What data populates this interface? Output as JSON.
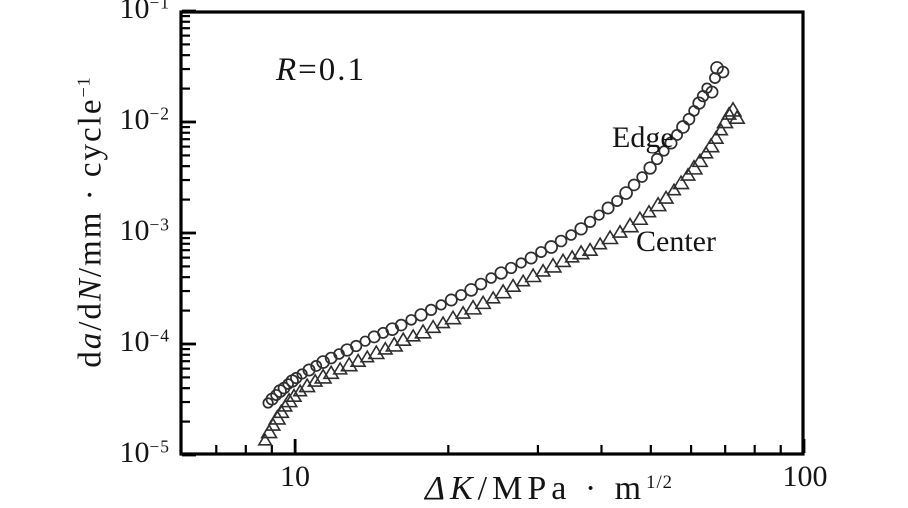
{
  "figure": {
    "background_color": "#ffffff",
    "frame_color": "#000000",
    "text_color": "#141414"
  },
  "chart_data": {
    "type": "scatter",
    "title": "",
    "xlabel": "ΔK/MPa · m^(1/2)",
    "ylabel": "da/dN/mm · cycle^(−1)",
    "xscale": "log",
    "yscale": "log",
    "xlim": [
      5.94,
      100
    ],
    "ylim": [
      1e-05,
      0.1
    ],
    "grid": false,
    "legend_position": "inline-annotations",
    "marker_color": "#2e2e2e",
    "x_axis": {
      "title_text": "ΔK/MPa · m^(1/2)",
      "title_parts": [
        {
          "t": "Δ",
          "style": "italic"
        },
        {
          "t": "K",
          "style": "italic"
        },
        {
          "t": "/MPa · m"
        },
        {
          "t": "1/2",
          "style": "sup"
        }
      ],
      "major_ticks": [
        {
          "value": 10,
          "label": "10"
        },
        {
          "value": 100,
          "label": "100"
        }
      ],
      "minor_ticks": [
        7,
        8,
        9,
        20,
        30,
        40,
        50,
        60,
        70,
        80,
        90
      ]
    },
    "y_axis": {
      "title_text": "da/dN/mm · cycle^(−1)",
      "title_parts": [
        {
          "t": "d"
        },
        {
          "t": "a",
          "style": "italic"
        },
        {
          "t": "/d"
        },
        {
          "t": "N",
          "style": "italic"
        },
        {
          "t": "/mm · cycle"
        },
        {
          "t": "−1",
          "style": "sup"
        }
      ],
      "major_ticks": [
        {
          "value": 0.1,
          "base": "10",
          "exp": "−1"
        },
        {
          "value": 0.01,
          "base": "10",
          "exp": "−2"
        },
        {
          "value": 0.001,
          "base": "10",
          "exp": "−3"
        },
        {
          "value": 0.0001,
          "base": "10",
          "exp": "−4"
        },
        {
          "value": 1e-05,
          "base": "10",
          "exp": "−5"
        }
      ],
      "minor_ticks": {
        "decades": [
          -5,
          -4,
          -3,
          -2
        ],
        "multipliers": [
          2,
          3,
          4,
          5,
          6,
          7,
          8,
          9
        ]
      }
    },
    "annotations": {
      "stress_ratio": {
        "text": "R=0.1",
        "parts": [
          {
            "t": "R",
            "style": "italic"
          },
          {
            "t": "=0.1"
          }
        ]
      }
    },
    "series": [
      {
        "name": "Edge",
        "marker": "circle",
        "points": [
          [
            8.85,
            2.94e-05
          ],
          [
            9.01,
            3.19e-05
          ],
          [
            9.18,
            3.47e-05
          ],
          [
            9.34,
            3.77e-05
          ],
          [
            9.51,
            4.01e-05
          ],
          [
            9.69,
            4.36e-05
          ],
          [
            9.87,
            4.64e-05
          ],
          [
            10.05,
            4.94e-05
          ],
          [
            10.32,
            5.37e-05
          ],
          [
            10.65,
            5.83e-05
          ],
          [
            11.0,
            6.34e-05
          ],
          [
            11.35,
            6.88e-05
          ],
          [
            11.77,
            7.48e-05
          ],
          [
            12.2,
            8.13e-05
          ],
          [
            12.65,
            8.83e-05
          ],
          [
            13.18,
            9.59e-05
          ],
          [
            13.73,
            0.000106
          ],
          [
            14.3,
            0.000116
          ],
          [
            14.89,
            0.000126
          ],
          [
            15.52,
            0.000136
          ],
          [
            16.16,
            0.000148
          ],
          [
            16.91,
            0.000165
          ],
          [
            17.68,
            0.000183
          ],
          [
            18.5,
            0.000203
          ],
          [
            19.36,
            0.000225
          ],
          [
            20.27,
            0.000249
          ],
          [
            21.19,
            0.000276
          ],
          [
            22.18,
            0.000307
          ],
          [
            23.18,
            0.000347
          ],
          [
            24.28,
            0.000393
          ],
          [
            25.4,
            0.000436
          ],
          [
            26.57,
            0.000484
          ],
          [
            27.81,
            0.000537
          ],
          [
            29.09,
            0.000595
          ],
          [
            30.44,
            0.000674
          ],
          [
            31.86,
            0.000748
          ],
          [
            33.31,
            0.000847
          ],
          [
            34.86,
            0.000959
          ],
          [
            36.47,
            0.00109
          ],
          [
            37.99,
            0.00126
          ],
          [
            39.57,
            0.00145
          ],
          [
            41.21,
            0.00168
          ],
          [
            42.93,
            0.00194
          ],
          [
            44.71,
            0.00229
          ],
          [
            46.35,
            0.00271
          ],
          [
            48.07,
            0.00319
          ],
          [
            49.84,
            0.00385
          ],
          [
            51.44,
            0.00464
          ],
          [
            53.08,
            0.00548
          ],
          [
            54.79,
            0.00647
          ],
          [
            56.3,
            0.00764
          ],
          [
            57.84,
            0.00902
          ],
          [
            59.43,
            0.0106
          ],
          [
            60.8,
            0.0126
          ],
          [
            62.19,
            0.0148
          ],
          [
            63.32,
            0.0171
          ],
          [
            64.47,
            0.0202
          ],
          [
            65.94,
            0.0186
          ],
          [
            66.85,
            0.0249
          ],
          [
            67.46,
            0.0307
          ],
          [
            69.32,
            0.0282
          ]
        ]
      },
      {
        "name": "Center",
        "marker": "triangle-up",
        "points": [
          [
            8.73,
            1.36e-05
          ],
          [
            8.89,
            1.61e-05
          ],
          [
            9.05,
            1.86e-05
          ],
          [
            9.22,
            2.15e-05
          ],
          [
            9.39,
            2.44e-05
          ],
          [
            9.56,
            2.76e-05
          ],
          [
            9.73,
            3.07e-05
          ],
          [
            9.95,
            3.4e-05
          ],
          [
            10.23,
            3.77e-05
          ],
          [
            10.56,
            4.18e-05
          ],
          [
            10.95,
            4.64e-05
          ],
          [
            11.35,
            5.04e-05
          ],
          [
            11.77,
            5.48e-05
          ],
          [
            12.26,
            5.95e-05
          ],
          [
            12.77,
            6.47e-05
          ],
          [
            13.3,
            7.03e-05
          ],
          [
            13.86,
            7.64e-05
          ],
          [
            14.44,
            8.3e-05
          ],
          [
            15.04,
            9.02e-05
          ],
          [
            15.66,
            9.79e-05
          ],
          [
            16.31,
            0.000109
          ],
          [
            17.06,
            0.000118
          ],
          [
            17.84,
            0.000128
          ],
          [
            18.67,
            0.000142
          ],
          [
            19.53,
            0.000155
          ],
          [
            20.43,
            0.000171
          ],
          [
            21.38,
            0.00019
          ],
          [
            22.37,
            0.000211
          ],
          [
            23.41,
            0.000234
          ],
          [
            24.5,
            0.00026
          ],
          [
            25.63,
            0.000294
          ],
          [
            26.81,
            0.000333
          ],
          [
            28.06,
            0.000369
          ],
          [
            29.36,
            0.00041
          ],
          [
            30.71,
            0.000455
          ],
          [
            32.12,
            0.000504
          ],
          [
            33.61,
            0.000559
          ],
          [
            35.02,
            0.000608
          ],
          [
            36.47,
            0.00066
          ],
          [
            37.99,
            0.000703
          ],
          [
            39.75,
            0.000796
          ],
          [
            41.58,
            0.000902
          ],
          [
            43.5,
            0.00102
          ],
          [
            45.51,
            0.00116
          ],
          [
            47.6,
            0.00134
          ],
          [
            49.59,
            0.00155
          ],
          [
            51.67,
            0.00179
          ],
          [
            53.57,
            0.00207
          ],
          [
            55.54,
            0.00244
          ],
          [
            57.33,
            0.00282
          ],
          [
            59.17,
            0.00333
          ],
          [
            60.8,
            0.00385
          ],
          [
            62.47,
            0.00445
          ],
          [
            64.19,
            0.00526
          ],
          [
            65.65,
            0.00608
          ],
          [
            67.16,
            0.00718
          ],
          [
            68.69,
            0.00847
          ],
          [
            69.95,
            0.01
          ],
          [
            71.23,
            0.0118
          ],
          [
            72.53,
            0.0128
          ],
          [
            73.86,
            0.0109
          ]
        ]
      }
    ]
  }
}
